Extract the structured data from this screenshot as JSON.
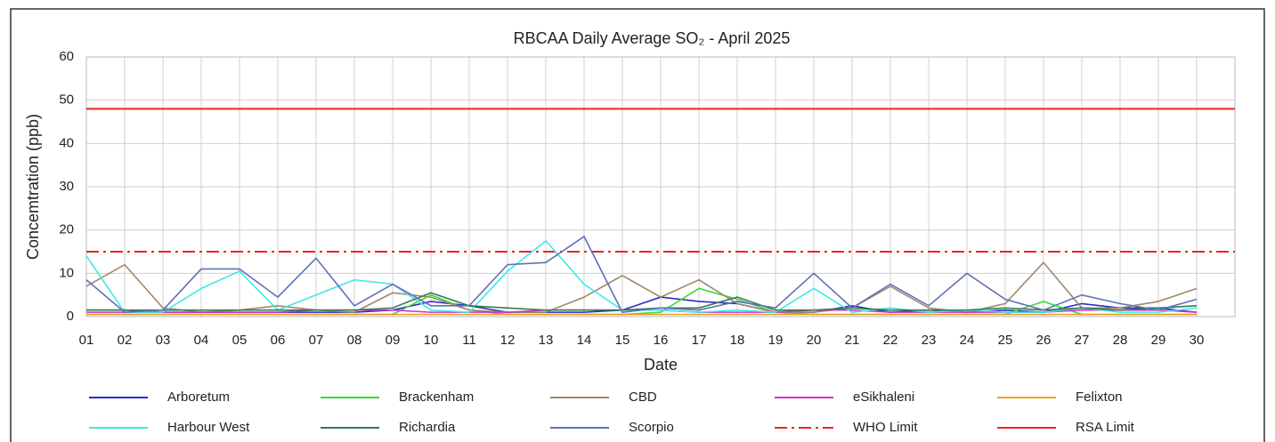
{
  "chart_data": {
    "type": "line",
    "title": "RBCAA Daily Average SO₂ - April 2025",
    "x_label": "Date",
    "y_label": "Concemtration (ppb)",
    "categories": [
      "01",
      "02",
      "03",
      "04",
      "05",
      "06",
      "07",
      "08",
      "09",
      "10",
      "11",
      "12",
      "13",
      "14",
      "15",
      "16",
      "17",
      "18",
      "19",
      "20",
      "21",
      "22",
      "23",
      "24",
      "25",
      "26",
      "27",
      "28",
      "29",
      "30"
    ],
    "ylim": [
      0,
      60
    ],
    "yticks": [
      0,
      10,
      20,
      30,
      40,
      50,
      60
    ],
    "grid": true,
    "legend": "bottom",
    "series": [
      {
        "name": "Arboretum",
        "color": "#2b2bd0",
        "values": [
          1.5,
          1.5,
          1,
          1,
          1,
          1,
          1,
          1,
          1.5,
          3.5,
          2.5,
          1,
          1,
          1,
          1.5,
          4.5,
          3.5,
          3,
          1,
          1,
          2.5,
          1,
          1.5,
          1,
          1.5,
          1,
          3,
          2,
          2,
          1
        ]
      },
      {
        "name": "Brackenham",
        "color": "#33dd33",
        "values": [
          0.5,
          0.5,
          0.5,
          0.5,
          0.5,
          0.5,
          0.5,
          0.5,
          0.5,
          5,
          1.5,
          0.5,
          0.5,
          0.5,
          0.5,
          1,
          6.5,
          4,
          1,
          0.5,
          0.5,
          0.5,
          0.5,
          0.5,
          0.5,
          3.5,
          0.5,
          0.5,
          0.5,
          0.5
        ]
      },
      {
        "name": "CBD",
        "color": "#a08868",
        "values": [
          7,
          12,
          2,
          1,
          1.5,
          2.5,
          1.5,
          1,
          5.5,
          4.5,
          1.5,
          1,
          1,
          4.5,
          9.5,
          4.5,
          8.5,
          3,
          1,
          1,
          2,
          7,
          2,
          1,
          3,
          12.5,
          2,
          2,
          3.5,
          6.5
        ]
      },
      {
        "name": "eSikhaleni",
        "color": "#d030d0",
        "values": [
          1,
          1,
          1,
          1,
          1,
          1,
          1.5,
          1.5,
          1.5,
          1,
          1,
          1,
          1.5,
          1.5,
          1.5,
          1.5,
          1,
          1,
          1,
          1.5,
          1.5,
          1,
          1,
          1,
          1,
          1,
          1.5,
          1.5,
          1.5,
          1
        ]
      },
      {
        "name": "Felixton",
        "color": "#f0a020",
        "values": [
          0.5,
          0.5,
          0.5,
          0.5,
          0.5,
          0.5,
          0.5,
          0.5,
          0.5,
          0.5,
          0.5,
          0.5,
          0.5,
          0.5,
          0.5,
          0.5,
          0.5,
          0.5,
          0.5,
          0.5,
          0.5,
          0.5,
          0.5,
          0.5,
          0.5,
          0.5,
          0.5,
          0.5,
          0.5,
          0.5
        ]
      },
      {
        "name": "Harbour West",
        "color": "#40e8e8",
        "values": [
          14,
          1,
          1,
          6.5,
          10.5,
          1.5,
          5,
          8.5,
          7.5,
          1.5,
          1,
          10.5,
          17.5,
          7.5,
          1.5,
          1.5,
          1,
          1.5,
          1,
          6.5,
          1,
          2,
          1,
          1.5,
          1,
          1,
          2,
          1,
          1,
          2
        ]
      },
      {
        "name": "Richardia",
        "color": "#2f7f4f",
        "values": [
          1.5,
          1.5,
          1.5,
          1.5,
          1.5,
          1.5,
          1.5,
          1.5,
          2,
          5.5,
          2.5,
          2,
          1.5,
          1.5,
          1.5,
          2,
          2,
          4.5,
          1.5,
          1.5,
          2,
          1.5,
          1.5,
          1.5,
          2,
          1.5,
          2,
          1.5,
          2,
          2.5
        ]
      },
      {
        "name": "Scorpio",
        "color": "#6070b8",
        "values": [
          8.5,
          1,
          1.5,
          11,
          11,
          4.5,
          13.5,
          2.5,
          7.5,
          2.5,
          2.5,
          12,
          12.5,
          18.5,
          1,
          2,
          1.5,
          3.5,
          2,
          10,
          2,
          7.5,
          2.5,
          10,
          4,
          1.5,
          5,
          3,
          1.5,
          4
        ]
      }
    ],
    "limits": [
      {
        "name": "WHO Limit",
        "color": "#ee2222",
        "value": 15,
        "dash": true
      },
      {
        "name": "RSA Limit",
        "color": "#ee2222",
        "value": 48,
        "dash": false
      }
    ]
  }
}
